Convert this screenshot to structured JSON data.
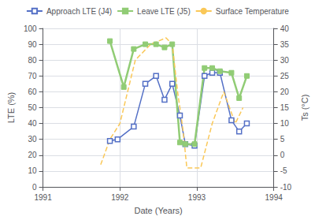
{
  "chart_data": {
    "type": "line",
    "xlabel": "Date (Years)",
    "ylabel": "LTE (%)",
    "y2label": "Ts (°C)",
    "xlim": [
      1991,
      1994
    ],
    "xticks": [
      1991,
      1992,
      1993,
      1994
    ],
    "ylim": [
      0,
      100
    ],
    "yticks": [
      0,
      10,
      20,
      30,
      40,
      50,
      60,
      70,
      80,
      90,
      100
    ],
    "y2lim": [
      -10,
      40
    ],
    "y2ticks": [
      -10,
      -5,
      0,
      5,
      10,
      15,
      20,
      25,
      30,
      35,
      40
    ],
    "grid": true,
    "legend": "top",
    "series": [
      {
        "name": "Approach LTE (J4)",
        "axis": "y",
        "marker": "open_square",
        "line_style": "solid",
        "x": [
          1991.87,
          1991.97,
          1992.18,
          1992.33,
          1992.47,
          1992.58,
          1992.68,
          1992.78,
          1992.85,
          1992.97,
          1993.1,
          1993.2,
          1993.3,
          1993.45,
          1993.55,
          1993.65
        ],
        "values": [
          29,
          30,
          38,
          65,
          70,
          55,
          65,
          45,
          27,
          26,
          70,
          72,
          72,
          42,
          35,
          40
        ]
      },
      {
        "name": "Leave LTE (J5)",
        "axis": "y",
        "marker": "square",
        "line_style": "solid",
        "x": [
          1991.87,
          1992.05,
          1992.18,
          1992.33,
          1992.47,
          1992.58,
          1992.68,
          1992.78,
          1992.85,
          1992.97,
          1993.1,
          1993.2,
          1993.3,
          1993.45,
          1993.55,
          1993.65
        ],
        "values": [
          92,
          63,
          87,
          90,
          90,
          88,
          90,
          28,
          27,
          27,
          75,
          75,
          73,
          72,
          56,
          70
        ]
      },
      {
        "name": "Surface Temperature",
        "axis": "y2",
        "marker": "none",
        "line_style": "dashed",
        "x": [
          1991.75,
          1991.87,
          1992.0,
          1992.2,
          1992.4,
          1992.6,
          1992.68,
          1992.75,
          1992.82,
          1992.87,
          1992.97,
          1993.05,
          1993.2,
          1993.35,
          1993.5,
          1993.6
        ],
        "values": [
          -3,
          5,
          10,
          30,
          35,
          37,
          35,
          20,
          8,
          -4,
          -4,
          -4,
          10,
          20,
          10,
          15
        ]
      }
    ]
  }
}
